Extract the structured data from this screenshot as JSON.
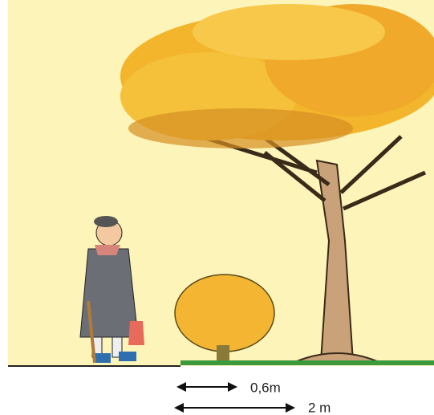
{
  "annotations": {
    "small_distance": "0,6m",
    "large_distance": "2 m"
  }
}
